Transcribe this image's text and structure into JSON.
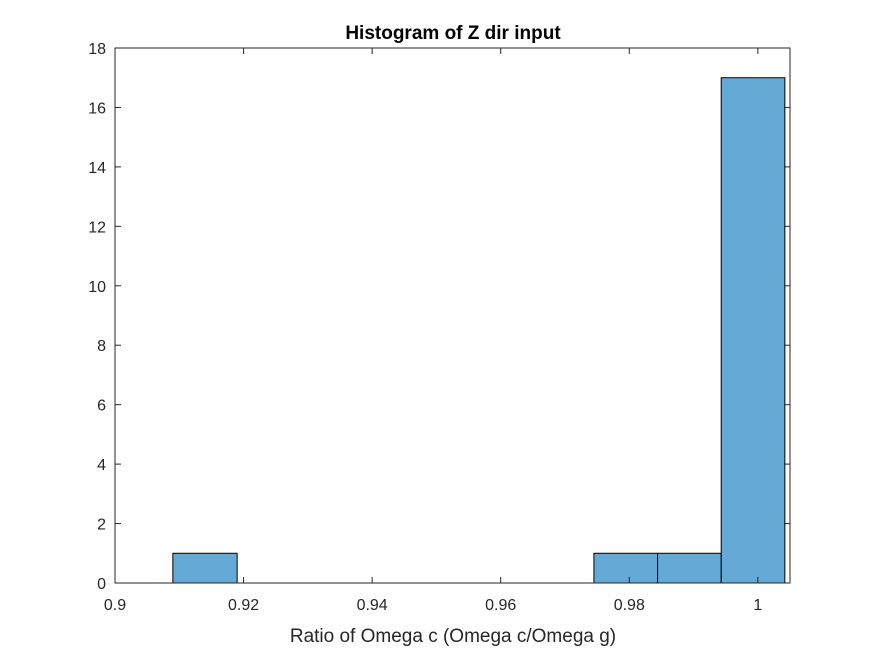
{
  "chart_data": {
    "type": "bar",
    "title": "Histogram of Z dir input",
    "xlabel": "Ratio of Omega c (Omega c/Omega g)",
    "ylabel": "",
    "xlim": [
      0.9,
      1.005
    ],
    "ylim": [
      0,
      18
    ],
    "xticks": [
      0.9,
      0.92,
      0.94,
      0.96,
      0.98,
      1
    ],
    "xtick_labels": [
      "0.9",
      "0.92",
      "0.94",
      "0.96",
      "0.98",
      "1"
    ],
    "yticks": [
      0,
      2,
      4,
      6,
      8,
      10,
      12,
      14,
      16,
      18
    ],
    "ytick_labels": [
      "0",
      "2",
      "4",
      "6",
      "8",
      "10",
      "12",
      "14",
      "16",
      "18"
    ],
    "bins": [
      {
        "x_start": 0.909,
        "x_end": 0.919,
        "count": 1
      },
      {
        "x_start": 0.9745,
        "x_end": 0.9844,
        "count": 1
      },
      {
        "x_start": 0.9844,
        "x_end": 0.9943,
        "count": 1
      },
      {
        "x_start": 0.9943,
        "x_end": 1.0042,
        "count": 17
      }
    ],
    "bar_color": "#65a9d7",
    "edge_color": "#000000",
    "grid": false
  }
}
